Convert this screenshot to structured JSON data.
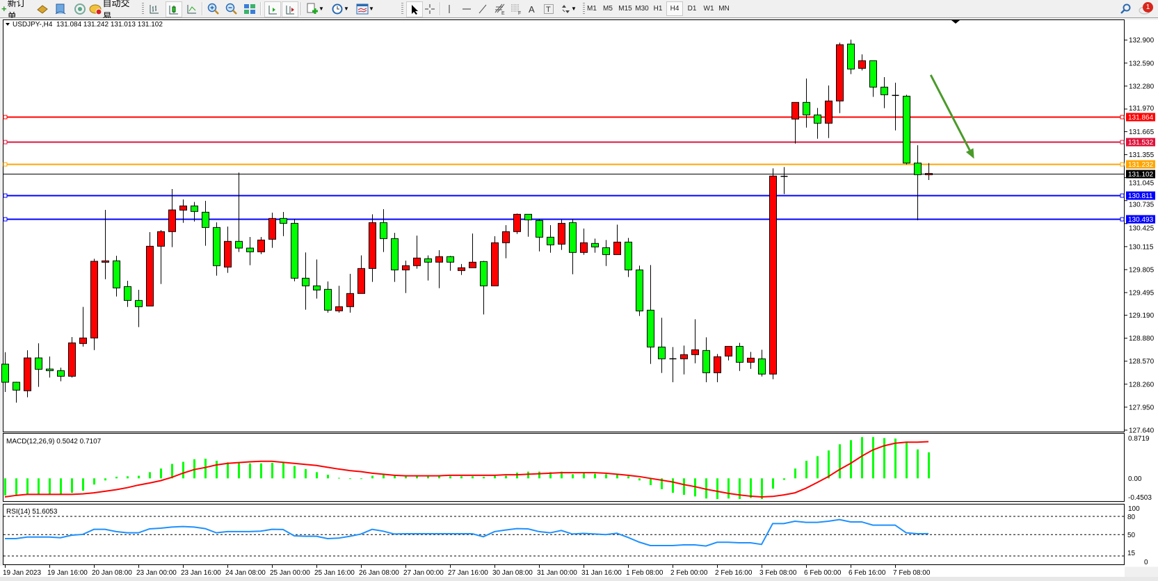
{
  "toolbar": {
    "new_order": "新订单",
    "auto_trading": "自动交易",
    "timeframes": [
      "M1",
      "M5",
      "M15",
      "M30",
      "H1",
      "H4",
      "D1",
      "W1",
      "MN"
    ],
    "active_timeframe": "H4",
    "notification_count": "1",
    "icons": [
      "new-order-icon",
      "market-watch-icon",
      "navigator-icon",
      "signals-icon",
      "auto-trading-icon",
      "bar-chart-icon",
      "candlestick-icon",
      "line-chart-icon",
      "zoom-in-icon",
      "zoom-out-icon",
      "tile-windows-icon",
      "auto-scroll-icon",
      "chart-shift-icon",
      "indicators-icon",
      "periods-icon",
      "templates-icon",
      "cursor-icon",
      "crosshair-icon",
      "vertical-line-icon",
      "horizontal-line-icon",
      "trendline-icon",
      "fibonacci-icon",
      "fibonacci-lines-icon",
      "text-icon",
      "text-label-icon",
      "arrows-icon",
      "search-icon",
      "chat-icon"
    ]
  },
  "chart_window": {
    "symbol_header": "USDJPY-,H4  131.084 131.242 131.013 131.102"
  },
  "macd_window": {
    "label": "MACD(12,26,9) 0.5042 0.7107",
    "axis_labels": [
      "0.8719",
      "0.00",
      "-0.4503"
    ]
  },
  "rsi_window": {
    "label": "RSI(14) 51.6053",
    "axis_labels": [
      "100",
      "80",
      "50",
      "15",
      "0"
    ]
  },
  "colors": {
    "bull_candle": "#ff0000",
    "bear_candle": "#00ff00",
    "macd_histogram": "#00ff00",
    "macd_signal": "#ff0000",
    "rsi_line": "#1e90ff",
    "annotation_arrow": "#4a9a2a"
  },
  "chart_data": {
    "type": "candlestick",
    "symbol": "USDJPY-",
    "timeframe": "H4",
    "ohlc_header": {
      "open": 131.084,
      "high": 131.242,
      "low": 131.013,
      "close": 131.102
    },
    "price_axis_labels": [
      "132.900",
      "132.590",
      "132.280",
      "131.970",
      "131.665",
      "131.355",
      "131.045",
      "130.735",
      "130.425",
      "130.115",
      "129.805",
      "129.495",
      "129.190",
      "128.880",
      "128.570",
      "128.260",
      "127.950",
      "127.640"
    ],
    "ylim": [
      127.64,
      133.16
    ],
    "x_tick_labels": [
      "19 Jan 2023",
      "19 Jan 16:00",
      "20 Jan 08:00",
      "23 Jan 00:00",
      "23 Jan 16:00",
      "24 Jan 08:00",
      "25 Jan 00:00",
      "25 Jan 16:00",
      "26 Jan 08:00",
      "27 Jan 00:00",
      "27 Jan 16:00",
      "30 Jan 08:00",
      "31 Jan 00:00",
      "31 Jan 16:00",
      "1 Feb 08:00",
      "2 Feb 00:00",
      "2 Feb 16:00",
      "3 Feb 08:00",
      "6 Feb 00:00",
      "6 Feb 16:00",
      "7 Feb 08:00"
    ],
    "x_tick_every_n_bars": 4,
    "ohlc": [
      [
        128.53,
        128.692,
        128.155,
        128.286
      ],
      [
        128.286,
        128.292,
        128.011,
        128.18
      ],
      [
        128.171,
        128.717,
        128.083,
        128.614
      ],
      [
        128.614,
        128.811,
        128.224,
        128.461
      ],
      [
        128.464,
        128.633,
        128.349,
        128.442
      ],
      [
        128.442,
        128.483,
        128.299,
        128.367
      ],
      [
        128.367,
        128.895,
        128.349,
        128.817
      ],
      [
        128.808,
        129.302,
        128.767,
        128.883
      ],
      [
        128.883,
        129.951,
        128.72,
        129.917
      ],
      [
        129.904,
        130.61,
        129.676,
        129.923
      ],
      [
        129.923,
        129.992,
        129.442,
        129.558
      ],
      [
        129.576,
        129.655,
        129.302,
        129.389
      ],
      [
        129.389,
        129.533,
        129.03,
        129.305
      ],
      [
        129.314,
        130.311,
        129.314,
        130.12
      ],
      [
        130.12,
        130.339,
        129.611,
        130.317
      ],
      [
        130.317,
        130.892,
        130.108,
        130.61
      ],
      [
        130.607,
        130.751,
        130.436,
        130.664
      ],
      [
        130.664,
        130.717,
        130.454,
        130.589
      ],
      [
        130.579,
        130.732,
        130.126,
        130.373
      ],
      [
        130.373,
        130.442,
        129.723,
        129.858
      ],
      [
        129.839,
        130.386,
        129.761,
        130.186
      ],
      [
        130.186,
        131.113,
        130.042,
        130.095
      ],
      [
        130.095,
        130.245,
        129.864,
        130.045
      ],
      [
        130.045,
        130.245,
        130.014,
        130.204
      ],
      [
        130.214,
        130.573,
        130.098,
        130.495
      ],
      [
        130.495,
        130.582,
        130.257,
        130.429
      ],
      [
        130.429,
        130.489,
        129.648,
        129.689
      ],
      [
        129.689,
        130.036,
        129.264,
        129.586
      ],
      [
        129.586,
        129.942,
        129.414,
        129.53
      ],
      [
        129.539,
        129.645,
        129.224,
        129.258
      ],
      [
        129.249,
        129.586,
        129.224,
        129.305
      ],
      [
        129.305,
        129.748,
        129.224,
        129.483
      ],
      [
        129.483,
        129.997,
        129.483,
        129.82
      ],
      [
        129.82,
        130.551,
        129.639,
        130.439
      ],
      [
        130.439,
        130.62,
        130.042,
        130.223
      ],
      [
        130.223,
        130.301,
        129.639,
        129.801
      ],
      [
        129.801,
        129.926,
        129.489,
        129.858
      ],
      [
        129.858,
        130.264,
        129.817,
        129.961
      ],
      [
        129.951,
        129.997,
        129.658,
        129.905
      ],
      [
        129.905,
        130.067,
        129.555,
        129.98
      ],
      [
        129.98,
        129.989,
        129.789,
        129.905
      ],
      [
        129.792,
        129.88,
        129.733,
        129.83
      ],
      [
        129.83,
        130.292,
        129.83,
        129.905
      ],
      [
        129.914,
        129.923,
        129.2,
        129.586
      ],
      [
        129.586,
        130.255,
        129.586,
        130.167
      ],
      [
        130.167,
        130.404,
        129.958,
        130.317
      ],
      [
        130.317,
        130.561,
        130.286,
        130.551
      ],
      [
        130.551,
        130.551,
        130.248,
        130.476
      ],
      [
        130.467,
        130.489,
        130.051,
        130.242
      ],
      [
        130.242,
        130.404,
        130.033,
        130.139
      ],
      [
        130.148,
        130.479,
        130.07,
        130.429
      ],
      [
        130.439,
        130.489,
        129.742,
        130.036
      ],
      [
        130.036,
        130.358,
        130.005,
        130.167
      ],
      [
        130.158,
        130.223,
        130.033,
        130.111
      ],
      [
        130.101,
        130.204,
        129.854,
        130.007
      ],
      [
        130.007,
        130.411,
        130.007,
        130.176
      ],
      [
        130.176,
        130.232,
        129.705,
        129.801
      ],
      [
        129.801,
        129.858,
        129.18,
        129.248
      ],
      [
        129.258,
        129.867,
        128.533,
        128.761
      ],
      [
        128.761,
        129.155,
        128.411,
        128.602
      ],
      [
        128.602,
        128.761,
        128.286,
        128.602
      ],
      [
        128.602,
        128.78,
        128.392,
        128.658
      ],
      [
        128.658,
        129.136,
        128.542,
        128.724
      ],
      [
        128.714,
        128.892,
        128.286,
        128.414
      ],
      [
        128.414,
        128.667,
        128.286,
        128.63
      ],
      [
        128.639,
        128.77,
        128.58,
        128.77
      ],
      [
        128.77,
        128.817,
        128.439,
        128.555
      ],
      [
        128.555,
        128.695,
        128.467,
        128.611
      ],
      [
        128.602,
        128.724,
        128.364,
        128.396
      ],
      [
        128.396,
        131.17,
        128.327,
        131.067
      ],
      [
        131.063,
        131.188,
        130.823,
        131.063
      ],
      [
        131.835,
        132.06,
        131.504,
        132.06
      ],
      [
        132.06,
        132.382,
        131.72,
        131.891
      ],
      [
        131.891,
        131.985,
        131.57,
        131.779
      ],
      [
        131.779,
        132.288,
        131.579,
        132.079
      ],
      [
        132.079,
        132.866,
        131.916,
        132.838
      ],
      [
        132.847,
        132.907,
        132.441,
        132.51
      ],
      [
        132.519,
        132.707,
        132.491,
        132.622
      ],
      [
        132.622,
        132.622,
        132.135,
        132.266
      ],
      [
        132.266,
        132.401,
        131.982,
        132.163
      ],
      [
        132.154,
        132.326,
        131.682,
        132.154
      ],
      [
        132.144,
        132.163,
        131.223,
        131.242
      ],
      [
        131.242,
        131.482,
        130.47,
        131.085
      ],
      [
        131.084,
        131.242,
        131.013,
        131.102
      ]
    ],
    "horizontal_lines": [
      {
        "price": 131.864,
        "label": "131.864",
        "color": "#ff0000"
      },
      {
        "price": 131.532,
        "label": "131.532",
        "color": "#dc143c"
      },
      {
        "price": 131.232,
        "label": "131.232",
        "color": "#ffa500"
      },
      {
        "price": 130.811,
        "label": "130.811",
        "color": "#0000ff"
      },
      {
        "price": 130.493,
        "label": "130.493",
        "color": "#0000ff"
      }
    ],
    "bid_line": {
      "price": 131.102,
      "label": "131.102",
      "color": "#000000"
    },
    "annotation": {
      "type": "arrow",
      "direction": "down",
      "from": {
        "bar": 83.2,
        "price": 132.43
      },
      "to": {
        "bar": 87.1,
        "price": 131.3
      }
    },
    "macd": {
      "params": "12,26,9",
      "ylim": [
        -0.4503,
        0.8719
      ],
      "histogram": [
        -0.33,
        -0.33,
        -0.31,
        -0.31,
        -0.3,
        -0.3,
        -0.28,
        -0.24,
        -0.12,
        -0.04,
        0.03,
        0.04,
        0.05,
        0.12,
        0.19,
        0.28,
        0.32,
        0.37,
        0.38,
        0.34,
        0.31,
        0.3,
        0.29,
        0.29,
        0.3,
        0.31,
        0.24,
        0.18,
        0.12,
        0.07,
        0.01,
        -0.01,
        0.0,
        0.05,
        0.07,
        0.05,
        0.05,
        0.04,
        0.04,
        0.04,
        0.04,
        0.04,
        0.04,
        0.03,
        0.05,
        0.05,
        0.11,
        0.13,
        0.13,
        0.12,
        0.13,
        0.08,
        0.11,
        0.09,
        0.08,
        0.07,
        0.04,
        -0.04,
        -0.13,
        -0.21,
        -0.28,
        -0.32,
        -0.35,
        -0.39,
        -0.4,
        -0.39,
        -0.4,
        -0.38,
        -0.4,
        -0.2,
        -0.03,
        0.19,
        0.34,
        0.43,
        0.54,
        0.66,
        0.74,
        0.8,
        0.8,
        0.78,
        0.77,
        0.69,
        0.56,
        0.5042
      ],
      "signal": [
        -0.36,
        -0.33,
        -0.31,
        -0.31,
        -0.31,
        -0.31,
        -0.31,
        -0.3,
        -0.28,
        -0.25,
        -0.22,
        -0.18,
        -0.13,
        -0.09,
        -0.045,
        0.02,
        0.1,
        0.17,
        0.21,
        0.26,
        0.29,
        0.305,
        0.32,
        0.33,
        0.33,
        0.31,
        0.29,
        0.27,
        0.25,
        0.215,
        0.18,
        0.15,
        0.13,
        0.1,
        0.08,
        0.06,
        0.05,
        0.05,
        0.05,
        0.05,
        0.06,
        0.06,
        0.06,
        0.06,
        0.06,
        0.07,
        0.07,
        0.08,
        0.09,
        0.1,
        0.11,
        0.11,
        0.11,
        0.11,
        0.1,
        0.08,
        0.06,
        0.035,
        0.0,
        -0.035,
        -0.07,
        -0.12,
        -0.16,
        -0.21,
        -0.25,
        -0.29,
        -0.32,
        -0.345,
        -0.36,
        -0.35,
        -0.32,
        -0.28,
        -0.19,
        -0.08,
        0.035,
        0.17,
        0.29,
        0.43,
        0.55,
        0.63,
        0.68,
        0.7,
        0.7,
        0.7107
      ]
    },
    "rsi": {
      "period": 14,
      "ylim": [
        0,
        100
      ],
      "levels": [
        80,
        50,
        15
      ],
      "values": [
        43.5,
        43.5,
        46,
        46,
        46,
        45,
        49,
        50.4,
        58.7,
        58.7,
        55,
        53,
        53,
        59.5,
        60.6,
        62.5,
        63.3,
        62.5,
        59.9,
        53,
        55,
        55,
        55,
        55.7,
        58.7,
        58.4,
        48,
        47.3,
        47.3,
        43.5,
        44.3,
        47.3,
        51,
        58.7,
        55.7,
        51,
        51.5,
        51.5,
        51.5,
        51.5,
        51.5,
        51.5,
        51.5,
        46.6,
        55,
        57.6,
        59.9,
        59.5,
        55,
        53,
        56.8,
        51,
        52,
        51,
        50,
        52.3,
        45.4,
        37.8,
        32.1,
        32.1,
        32.1,
        33.3,
        33.3,
        31.4,
        37.5,
        37.5,
        36.7,
        36.7,
        34,
        68.2,
        68.2,
        72,
        70.1,
        70.1,
        72,
        74.7,
        70.9,
        70.9,
        65.6,
        65.6,
        65.6,
        53,
        51.5,
        51.6053
      ]
    }
  }
}
